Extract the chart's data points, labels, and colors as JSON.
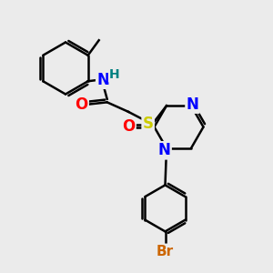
{
  "bg_color": "#ebebeb",
  "atom_colors": {
    "C": "#000000",
    "N": "#0000ff",
    "O": "#ff0000",
    "S": "#cccc00",
    "Br": "#cc6600",
    "H": "#008080"
  },
  "bond_color": "#000000",
  "bond_width": 1.8
}
